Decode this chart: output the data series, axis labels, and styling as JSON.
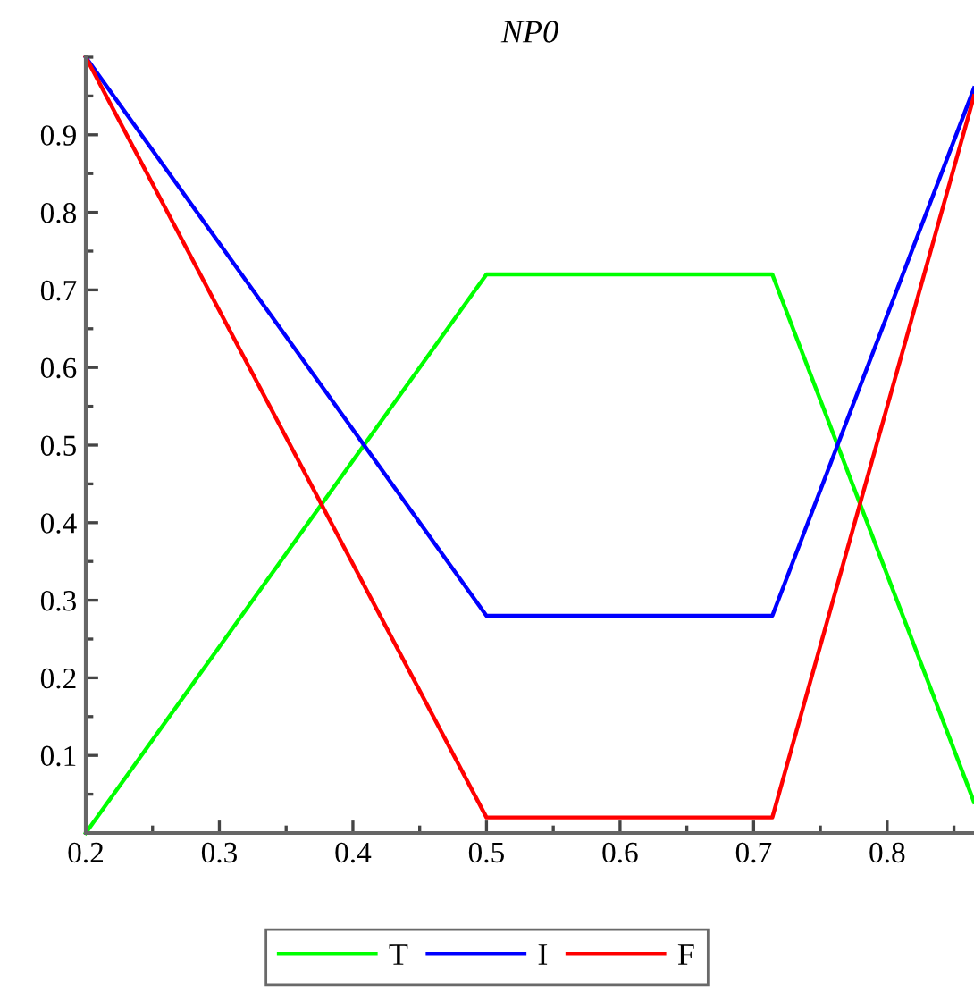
{
  "chart_data": {
    "type": "line",
    "title": "NP0",
    "x": [
      0.2,
      0.5,
      0.714,
      0.865
    ],
    "series": [
      {
        "name": "T",
        "color": "#00ff00",
        "values": [
          0,
          0.72,
          0.72,
          0.04
        ]
      },
      {
        "name": "I",
        "color": "#0000ff",
        "values": [
          1,
          0.28,
          0.28,
          0.96
        ]
      },
      {
        "name": "F",
        "color": "#ff0000",
        "values": [
          1,
          0.02,
          0.02,
          0.95
        ]
      }
    ],
    "xlim": [
      0.2,
      0.865
    ],
    "ylim": [
      0,
      1
    ],
    "xticks": [
      0.2,
      0.3,
      0.4,
      0.5,
      0.6,
      0.7,
      0.8
    ],
    "yticks": [
      0.1,
      0.2,
      0.3,
      0.4,
      0.5,
      0.6,
      0.7,
      0.8,
      0.9
    ],
    "grid": false,
    "legend": "bottom",
    "marker": "none",
    "line_style": "solid"
  }
}
